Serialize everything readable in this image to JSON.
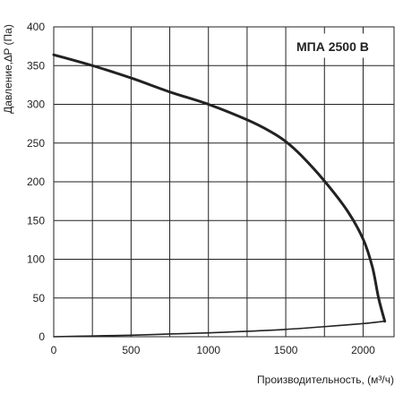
{
  "chart_data": {
    "type": "line",
    "title": "МПА 2500 B",
    "xlabel": "Производительность, (м³/ч)",
    "ylabel": "Давление,∆P (Па)",
    "xlim": [
      0,
      2200
    ],
    "ylim": [
      0,
      400
    ],
    "x_ticks": [
      0,
      500,
      1000,
      1500,
      2000
    ],
    "y_ticks": [
      0,
      50,
      100,
      150,
      200,
      250,
      300,
      350,
      400
    ],
    "x_grid": [
      0,
      250,
      500,
      750,
      1000,
      1250,
      1500,
      1750,
      2000,
      2200
    ],
    "y_grid": [
      0,
      50,
      100,
      150,
      200,
      250,
      300,
      350,
      400
    ],
    "grid": true,
    "series": [
      {
        "name": "",
        "color": "#222222",
        "points": [
          [
            0,
            364
          ],
          [
            250,
            350
          ],
          [
            500,
            334
          ],
          [
            750,
            316
          ],
          [
            1000,
            300
          ],
          [
            1250,
            280
          ],
          [
            1400,
            265
          ],
          [
            1500,
            252
          ],
          [
            1600,
            234
          ],
          [
            1750,
            201
          ],
          [
            1900,
            162
          ],
          [
            2000,
            126
          ],
          [
            2060,
            90
          ],
          [
            2100,
            50
          ],
          [
            2140,
            20
          ]
        ]
      },
      {
        "name": "",
        "color": "#222222",
        "points": [
          [
            0,
            0
          ],
          [
            250,
            1
          ],
          [
            500,
            2
          ],
          [
            750,
            3.5
          ],
          [
            1000,
            5
          ],
          [
            1250,
            7
          ],
          [
            1500,
            9.5
          ],
          [
            1750,
            13
          ],
          [
            2000,
            17
          ],
          [
            2140,
            20
          ]
        ]
      }
    ]
  }
}
